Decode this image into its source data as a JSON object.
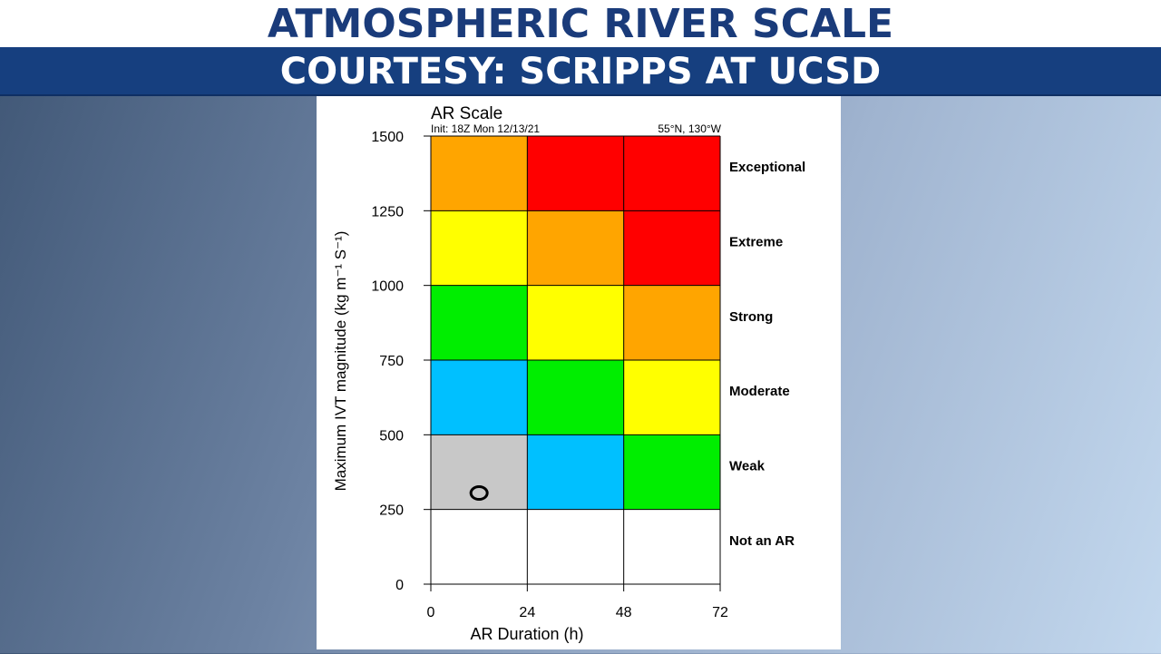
{
  "header": {
    "title": "ATMOSPHERIC RIVER SCALE",
    "subtitle": "COURTESY: SCRIPPS AT UCSD"
  },
  "colors": {
    "header_text": "#1a3b7a",
    "band": "#163f7f",
    "grey": "#c8c8c8",
    "blue": "#00c0ff",
    "green": "#00ee00",
    "yellow": "#ffff00",
    "orange": "#ffa500",
    "red": "#ff0000",
    "white": "#ffffff"
  },
  "chart_data": {
    "type": "heatmap",
    "title": "AR Scale",
    "init_label": "Init: 18Z Mon 12/13/21",
    "location_label": "55°N, 130°W",
    "xlabel": "AR Duration (h)",
    "ylabel": "Maximum IVT magnitude (kg m⁻¹ S⁻¹)",
    "xlim": [
      0,
      72
    ],
    "ylim": [
      0,
      1500
    ],
    "x_ticks": [
      0,
      24,
      48,
      72
    ],
    "y_ticks": [
      0,
      250,
      500,
      750,
      1000,
      1250,
      1500
    ],
    "x_bins": [
      0,
      24,
      48,
      72
    ],
    "y_bins": [
      250,
      500,
      750,
      1000,
      1250,
      1500
    ],
    "cells": [
      [
        "grey",
        "blue",
        "green"
      ],
      [
        "blue",
        "green",
        "yellow"
      ],
      [
        "green",
        "yellow",
        "orange"
      ],
      [
        "yellow",
        "orange",
        "red"
      ],
      [
        "orange",
        "red",
        "red"
      ]
    ],
    "categories": [
      {
        "label": "Not an AR",
        "y_range": [
          0,
          250
        ]
      },
      {
        "label": "Weak",
        "y_range": [
          250,
          500
        ]
      },
      {
        "label": "Moderate",
        "y_range": [
          500,
          750
        ]
      },
      {
        "label": "Strong",
        "y_range": [
          750,
          1000
        ]
      },
      {
        "label": "Extreme",
        "y_range": [
          1000,
          1250
        ]
      },
      {
        "label": "Exceptional",
        "y_range": [
          1250,
          1500
        ]
      }
    ],
    "marker": {
      "x": 12,
      "y": 305,
      "symbol": "circle"
    }
  }
}
